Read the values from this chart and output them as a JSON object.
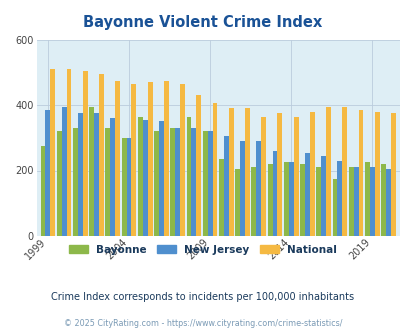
{
  "title": "Bayonne Violent Crime Index",
  "years": [
    1999,
    2000,
    2001,
    2002,
    2003,
    2004,
    2005,
    2006,
    2007,
    2008,
    2009,
    2010,
    2011,
    2012,
    2013,
    2014,
    2015,
    2016,
    2017,
    2018,
    2019,
    2020
  ],
  "bayonne": [
    275,
    320,
    330,
    395,
    330,
    300,
    365,
    320,
    330,
    365,
    320,
    235,
    205,
    210,
    220,
    225,
    220,
    210,
    175,
    210,
    225,
    220
  ],
  "new_jersey": [
    385,
    395,
    375,
    375,
    360,
    300,
    355,
    350,
    330,
    330,
    320,
    305,
    290,
    290,
    260,
    225,
    255,
    245,
    230,
    210,
    210,
    205
  ],
  "national": [
    510,
    510,
    505,
    495,
    475,
    465,
    470,
    475,
    465,
    430,
    405,
    390,
    390,
    365,
    375,
    365,
    380,
    395,
    395,
    385,
    380,
    375
  ],
  "bar_colors": {
    "bayonne": "#8db84a",
    "new_jersey": "#4f8fce",
    "national": "#f5b942"
  },
  "ylim": [
    0,
    600
  ],
  "yticks": [
    0,
    200,
    400,
    600
  ],
  "xtick_years": [
    1999,
    2004,
    2009,
    2014,
    2019
  ],
  "background_color": "#deeef5",
  "outer_bg": "#ffffff",
  "subtitle": "Crime Index corresponds to incidents per 100,000 inhabitants",
  "footer": "© 2025 CityRating.com - https://www.cityrating.com/crime-statistics/",
  "title_color": "#1a5296",
  "subtitle_color": "#1a3a5c",
  "footer_color": "#7a9ab5",
  "legend_labels": [
    "Bayonne",
    "New Jersey",
    "National"
  ],
  "legend_text_color": "#1a3a5c",
  "grid_color": "#bbccdd"
}
